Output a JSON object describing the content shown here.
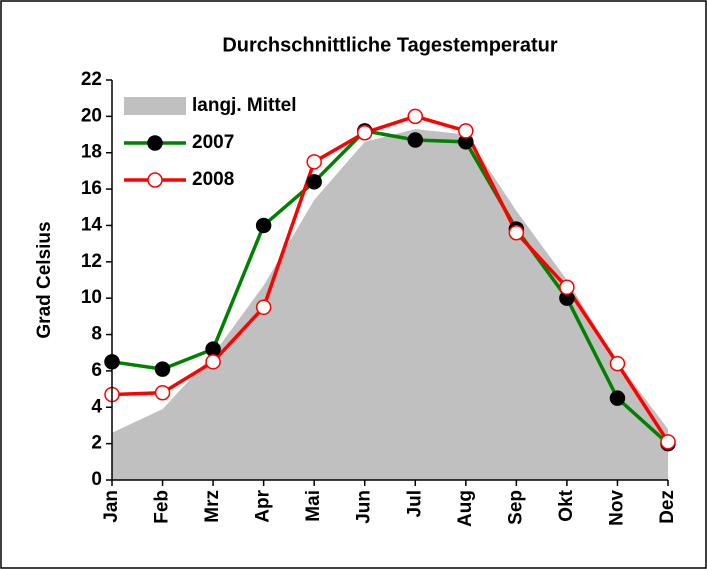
{
  "chart_data": {
    "type": "line",
    "title": "Durchschnittliche Tagestemperatur",
    "y_label": "Grad Celsius",
    "categories": [
      "Jan",
      "Feb",
      "Mrz",
      "Apr",
      "Mai",
      "Jun",
      "Jul",
      "Aug",
      "Sep",
      "Okt",
      "Nov",
      "Dez"
    ],
    "series": [
      {
        "name": "langj. Mittel",
        "type": "area",
        "color": "#c0c0c0",
        "values": [
          2.6,
          3.9,
          6.9,
          10.7,
          15.4,
          18.6,
          19.3,
          19.0,
          14.8,
          11.0,
          6.5,
          2.8
        ]
      },
      {
        "name": "2007",
        "type": "line",
        "color": "#008000",
        "marker_fill": "#000000",
        "values": [
          6.5,
          6.1,
          7.2,
          14.0,
          16.4,
          19.2,
          18.7,
          18.6,
          13.8,
          10.0,
          4.5,
          2.0
        ]
      },
      {
        "name": "2008",
        "type": "line",
        "color": "#ff0000",
        "marker_fill": "#ffffff",
        "values": [
          4.7,
          4.8,
          6.5,
          9.5,
          17.5,
          19.1,
          20.0,
          19.2,
          13.6,
          10.6,
          6.4,
          2.1
        ]
      }
    ],
    "ylim": [
      0,
      22
    ],
    "yticks": [
      0,
      2,
      4,
      6,
      8,
      10,
      12,
      14,
      16,
      18,
      20,
      22
    ],
    "grid": false,
    "legend": "upper-left"
  }
}
